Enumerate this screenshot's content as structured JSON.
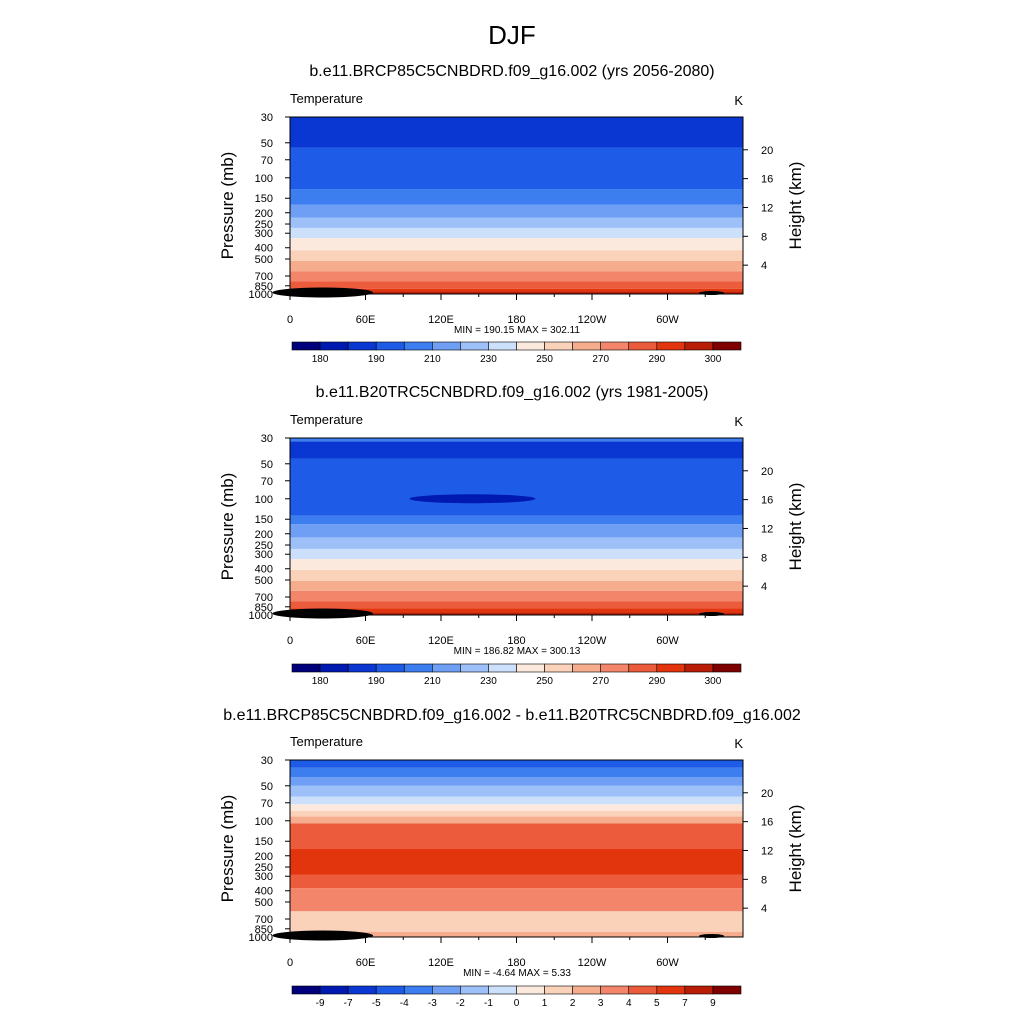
{
  "page_title": "DJF",
  "colors": {
    "abs_scale": [
      "#00007a",
      "#0019b0",
      "#0a37d2",
      "#1e5be6",
      "#3c7ef0",
      "#6e9ff5",
      "#9ec0f8",
      "#cde0fb",
      "#fbe9dd",
      "#fad1b9",
      "#f6ad8e",
      "#f2856a",
      "#eb5b3c",
      "#e2340d",
      "#b91d06",
      "#7f0000"
    ],
    "diff_scale": [
      "#00007a",
      "#0019b0",
      "#0a37d2",
      "#1e5be6",
      "#3c7ef0",
      "#6e9ff5",
      "#9ec0f8",
      "#cde0fb",
      "#fbe9dd",
      "#fad1b9",
      "#f6ad8e",
      "#f2856a",
      "#eb5b3c",
      "#e2340d",
      "#b91d06",
      "#7f0000"
    ],
    "terrain": "#000000"
  },
  "chart_data": [
    {
      "type": "heatmap",
      "title": "b.e11.BRCP85C5CNBDRD.f09_g16.002 (yrs 2056-2080)",
      "left_label": "Temperature",
      "units": "K",
      "ylabel": "Pressure (mb)",
      "y2label": "Height (km)",
      "x_ticks": [
        "0",
        "60E",
        "120E",
        "180",
        "120W",
        "60W"
      ],
      "x_tick_lon": [
        0,
        60,
        120,
        180,
        240,
        300
      ],
      "x_range": [
        0,
        360
      ],
      "y_ticks": [
        30,
        50,
        70,
        100,
        150,
        200,
        250,
        300,
        400,
        500,
        700,
        850,
        1000
      ],
      "y_range": [
        30,
        1000
      ],
      "height_ticks": [
        20,
        16,
        12,
        8,
        4
      ],
      "stats": "MIN = 190.15  MAX = 302.11",
      "colorbar_labels": [
        "180",
        "190",
        "210",
        "230",
        "250",
        "270",
        "290",
        "300"
      ],
      "colorbar_label_boxes": [
        1,
        3,
        5,
        7,
        9,
        11,
        13,
        15
      ],
      "layers_bottom_to_top": [
        {
          "p": 1000,
          "level": 14
        },
        {
          "p": 950,
          "level": 13
        },
        {
          "p": 900,
          "level": 12
        },
        {
          "p": 780,
          "level": 11
        },
        {
          "p": 640,
          "level": 10
        },
        {
          "p": 520,
          "level": 9
        },
        {
          "p": 420,
          "level": 8
        },
        {
          "p": 330,
          "level": 7
        },
        {
          "p": 270,
          "level": 6
        },
        {
          "p": 220,
          "level": 5
        },
        {
          "p": 170,
          "level": 4
        },
        {
          "p": 125,
          "level": 3
        },
        {
          "p": 55,
          "level": 2
        },
        {
          "p": 30,
          "level": 3
        }
      ]
    },
    {
      "type": "heatmap",
      "title": "b.e11.B20TRC5CNBDRD.f09_g16.002 (yrs 1981-2005)",
      "left_label": "Temperature",
      "units": "K",
      "ylabel": "Pressure (mb)",
      "y2label": "Height (km)",
      "x_ticks": [
        "0",
        "60E",
        "120E",
        "180",
        "120W",
        "60W"
      ],
      "x_tick_lon": [
        0,
        60,
        120,
        180,
        240,
        300
      ],
      "x_range": [
        0,
        360
      ],
      "y_ticks": [
        30,
        50,
        70,
        100,
        150,
        200,
        250,
        300,
        400,
        500,
        700,
        850,
        1000
      ],
      "y_range": [
        30,
        1000
      ],
      "height_ticks": [
        20,
        16,
        12,
        8,
        4
      ],
      "stats": "MIN = 186.82  MAX = 300.13",
      "colorbar_labels": [
        "180",
        "190",
        "210",
        "230",
        "250",
        "270",
        "290",
        "300"
      ],
      "colorbar_label_boxes": [
        1,
        3,
        5,
        7,
        9,
        11,
        13,
        15
      ],
      "layers_bottom_to_top": [
        {
          "p": 1000,
          "level": 14
        },
        {
          "p": 950,
          "level": 13
        },
        {
          "p": 880,
          "level": 12
        },
        {
          "p": 760,
          "level": 11
        },
        {
          "p": 620,
          "level": 10
        },
        {
          "p": 510,
          "level": 9
        },
        {
          "p": 410,
          "level": 8
        },
        {
          "p": 330,
          "level": 7
        },
        {
          "p": 270,
          "level": 6
        },
        {
          "p": 215,
          "level": 5
        },
        {
          "p": 165,
          "level": 4
        },
        {
          "p": 140,
          "level": 3
        },
        {
          "p": 45,
          "level": 2
        },
        {
          "p": 32,
          "level": 4
        }
      ],
      "blob": {
        "lon_center": 145,
        "lon_halfwidth": 50,
        "p_center": 100,
        "level": 1
      }
    },
    {
      "type": "heatmap",
      "title": "b.e11.BRCP85C5CNBDRD.f09_g16.002 - b.e11.B20TRC5CNBDRD.f09_g16.002",
      "left_label": "Temperature",
      "units": "K",
      "ylabel": "Pressure (mb)",
      "y2label": "Height (km)",
      "x_ticks": [
        "0",
        "60E",
        "120E",
        "180",
        "120W",
        "60W"
      ],
      "x_tick_lon": [
        0,
        60,
        120,
        180,
        240,
        300
      ],
      "x_range": [
        0,
        360
      ],
      "y_ticks": [
        30,
        50,
        70,
        100,
        150,
        200,
        250,
        300,
        400,
        500,
        700,
        850,
        1000
      ],
      "y_range": [
        30,
        1000
      ],
      "height_ticks": [
        20,
        16,
        12,
        8,
        4
      ],
      "stats": "MIN =  -4.64  MAX =   5.33",
      "colorbar_labels": [
        "-9",
        "-7",
        "-5",
        "-4",
        "-3",
        "-2",
        "-1",
        "0",
        "1",
        "2",
        "3",
        "4",
        "5",
        "7",
        "9"
      ],
      "colorbar_label_boxes": [
        1,
        2,
        3,
        4,
        5,
        6,
        7,
        8,
        9,
        10,
        11,
        12,
        13,
        14,
        15
      ],
      "layers_bottom_to_top": [
        {
          "p": 1000,
          "level": 10
        },
        {
          "p": 900,
          "level": 9
        },
        {
          "p": 600,
          "level": 11
        },
        {
          "p": 380,
          "level": 12
        },
        {
          "p": 290,
          "level": 13
        },
        {
          "p": 175,
          "level": 12
        },
        {
          "p": 105,
          "level": 10
        },
        {
          "p": 92,
          "level": 9
        },
        {
          "p": 82,
          "level": 8
        },
        {
          "p": 72,
          "level": 7
        },
        {
          "p": 62,
          "level": 6
        },
        {
          "p": 50,
          "level": 5
        },
        {
          "p": 42,
          "level": 4
        },
        {
          "p": 35,
          "level": 3
        }
      ]
    }
  ]
}
